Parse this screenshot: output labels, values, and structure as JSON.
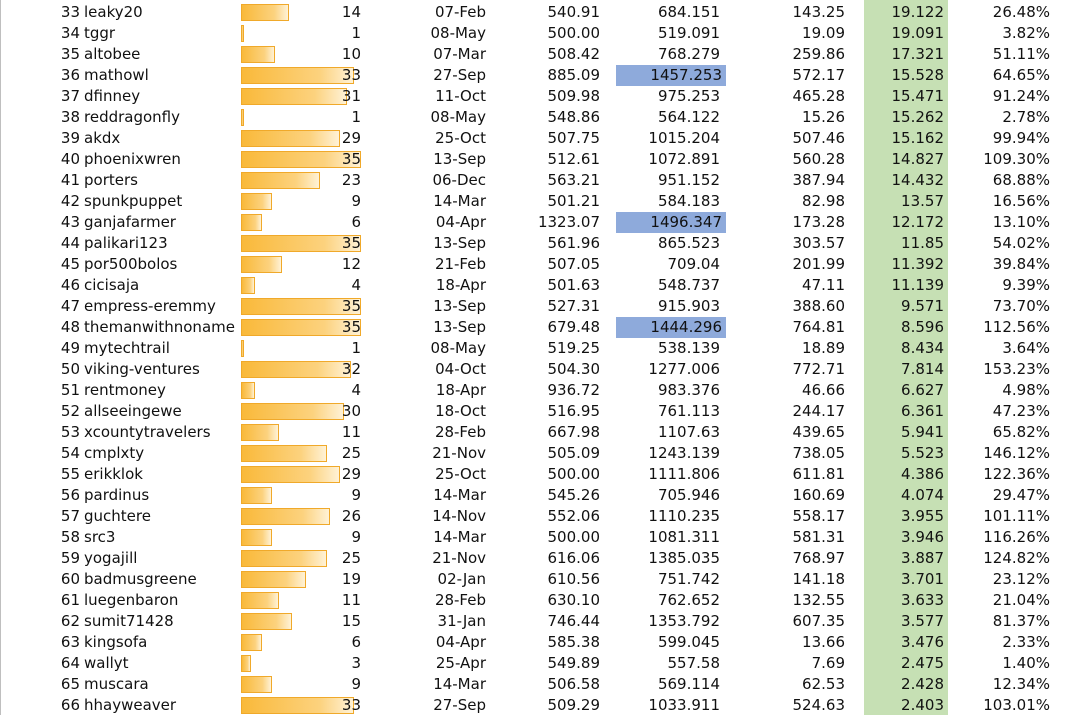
{
  "colors": {
    "highlight_blue": "#8eaadb",
    "green_column": "#c6e0b4",
    "bar_orange": "#f9b93a"
  },
  "bar_max": 35,
  "rows": [
    {
      "rank": "33",
      "name": "leaky20",
      "count": "14",
      "date": "07-Feb",
      "v1": "540.91",
      "v2": "684.151",
      "v3": "143.25",
      "v4": "19.122",
      "v5": "26.48%",
      "hl": false
    },
    {
      "rank": "34",
      "name": "tggr",
      "count": "1",
      "date": "08-May",
      "v1": "500.00",
      "v2": "519.091",
      "v3": "19.09",
      "v4": "19.091",
      "v5": "3.82%",
      "hl": false
    },
    {
      "rank": "35",
      "name": "altobee",
      "count": "10",
      "date": "07-Mar",
      "v1": "508.42",
      "v2": "768.279",
      "v3": "259.86",
      "v4": "17.321",
      "v5": "51.11%",
      "hl": false
    },
    {
      "rank": "36",
      "name": "mathowl",
      "count": "33",
      "date": "27-Sep",
      "v1": "885.09",
      "v2": "1457.253",
      "v3": "572.17",
      "v4": "15.528",
      "v5": "64.65%",
      "hl": true
    },
    {
      "rank": "37",
      "name": "dfinney",
      "count": "31",
      "date": "11-Oct",
      "v1": "509.98",
      "v2": "975.253",
      "v3": "465.28",
      "v4": "15.471",
      "v5": "91.24%",
      "hl": false
    },
    {
      "rank": "38",
      "name": "reddragonfly",
      "count": "1",
      "date": "08-May",
      "v1": "548.86",
      "v2": "564.122",
      "v3": "15.26",
      "v4": "15.262",
      "v5": "2.78%",
      "hl": false
    },
    {
      "rank": "39",
      "name": "akdx",
      "count": "29",
      "date": "25-Oct",
      "v1": "507.75",
      "v2": "1015.204",
      "v3": "507.46",
      "v4": "15.162",
      "v5": "99.94%",
      "hl": false
    },
    {
      "rank": "40",
      "name": "phoenixwren",
      "count": "35",
      "date": "13-Sep",
      "v1": "512.61",
      "v2": "1072.891",
      "v3": "560.28",
      "v4": "14.827",
      "v5": "109.30%",
      "hl": false
    },
    {
      "rank": "41",
      "name": "porters",
      "count": "23",
      "date": "06-Dec",
      "v1": "563.21",
      "v2": "951.152",
      "v3": "387.94",
      "v4": "14.432",
      "v5": "68.88%",
      "hl": false
    },
    {
      "rank": "42",
      "name": "spunkpuppet",
      "count": "9",
      "date": "14-Mar",
      "v1": "501.21",
      "v2": "584.183",
      "v3": "82.98",
      "v4": "13.57",
      "v5": "16.56%",
      "hl": false
    },
    {
      "rank": "43",
      "name": "ganjafarmer",
      "count": "6",
      "date": "04-Apr",
      "v1": "1323.07",
      "v2": "1496.347",
      "v3": "173.28",
      "v4": "12.172",
      "v5": "13.10%",
      "hl": true
    },
    {
      "rank": "44",
      "name": "palikari123",
      "count": "35",
      "date": "13-Sep",
      "v1": "561.96",
      "v2": "865.523",
      "v3": "303.57",
      "v4": "11.85",
      "v5": "54.02%",
      "hl": false
    },
    {
      "rank": "45",
      "name": "por500bolos",
      "count": "12",
      "date": "21-Feb",
      "v1": "507.05",
      "v2": "709.04",
      "v3": "201.99",
      "v4": "11.392",
      "v5": "39.84%",
      "hl": false
    },
    {
      "rank": "46",
      "name": "cicisaja",
      "count": "4",
      "date": "18-Apr",
      "v1": "501.63",
      "v2": "548.737",
      "v3": "47.11",
      "v4": "11.139",
      "v5": "9.39%",
      "hl": false
    },
    {
      "rank": "47",
      "name": "empress-eremmy",
      "count": "35",
      "date": "13-Sep",
      "v1": "527.31",
      "v2": "915.903",
      "v3": "388.60",
      "v4": "9.571",
      "v5": "73.70%",
      "hl": false
    },
    {
      "rank": "48",
      "name": "themanwithnoname",
      "count": "35",
      "date": "13-Sep",
      "v1": "679.48",
      "v2": "1444.296",
      "v3": "764.81",
      "v4": "8.596",
      "v5": "112.56%",
      "hl": true
    },
    {
      "rank": "49",
      "name": "mytechtrail",
      "count": "1",
      "date": "08-May",
      "v1": "519.25",
      "v2": "538.139",
      "v3": "18.89",
      "v4": "8.434",
      "v5": "3.64%",
      "hl": false
    },
    {
      "rank": "50",
      "name": "viking-ventures",
      "count": "32",
      "date": "04-Oct",
      "v1": "504.30",
      "v2": "1277.006",
      "v3": "772.71",
      "v4": "7.814",
      "v5": "153.23%",
      "hl": false
    },
    {
      "rank": "51",
      "name": "rentmoney",
      "count": "4",
      "date": "18-Apr",
      "v1": "936.72",
      "v2": "983.376",
      "v3": "46.66",
      "v4": "6.627",
      "v5": "4.98%",
      "hl": false
    },
    {
      "rank": "52",
      "name": "allseeingewe",
      "count": "30",
      "date": "18-Oct",
      "v1": "516.95",
      "v2": "761.113",
      "v3": "244.17",
      "v4": "6.361",
      "v5": "47.23%",
      "hl": false
    },
    {
      "rank": "53",
      "name": "xcountytravelers",
      "count": "11",
      "date": "28-Feb",
      "v1": "667.98",
      "v2": "1107.63",
      "v3": "439.65",
      "v4": "5.941",
      "v5": "65.82%",
      "hl": false
    },
    {
      "rank": "54",
      "name": "cmplxty",
      "count": "25",
      "date": "21-Nov",
      "v1": "505.09",
      "v2": "1243.139",
      "v3": "738.05",
      "v4": "5.523",
      "v5": "146.12%",
      "hl": false
    },
    {
      "rank": "55",
      "name": "erikklok",
      "count": "29",
      "date": "25-Oct",
      "v1": "500.00",
      "v2": "1111.806",
      "v3": "611.81",
      "v4": "4.386",
      "v5": "122.36%",
      "hl": false
    },
    {
      "rank": "56",
      "name": "pardinus",
      "count": "9",
      "date": "14-Mar",
      "v1": "545.26",
      "v2": "705.946",
      "v3": "160.69",
      "v4": "4.074",
      "v5": "29.47%",
      "hl": false
    },
    {
      "rank": "57",
      "name": "guchtere",
      "count": "26",
      "date": "14-Nov",
      "v1": "552.06",
      "v2": "1110.235",
      "v3": "558.17",
      "v4": "3.955",
      "v5": "101.11%",
      "hl": false
    },
    {
      "rank": "58",
      "name": "src3",
      "count": "9",
      "date": "14-Mar",
      "v1": "500.00",
      "v2": "1081.311",
      "v3": "581.31",
      "v4": "3.946",
      "v5": "116.26%",
      "hl": false
    },
    {
      "rank": "59",
      "name": "yogajill",
      "count": "25",
      "date": "21-Nov",
      "v1": "616.06",
      "v2": "1385.035",
      "v3": "768.97",
      "v4": "3.887",
      "v5": "124.82%",
      "hl": false
    },
    {
      "rank": "60",
      "name": "badmusgreene",
      "count": "19",
      "date": "02-Jan",
      "v1": "610.56",
      "v2": "751.742",
      "v3": "141.18",
      "v4": "3.701",
      "v5": "23.12%",
      "hl": false
    },
    {
      "rank": "61",
      "name": "luegenbaron",
      "count": "11",
      "date": "28-Feb",
      "v1": "630.10",
      "v2": "762.652",
      "v3": "132.55",
      "v4": "3.633",
      "v5": "21.04%",
      "hl": false
    },
    {
      "rank": "62",
      "name": "sumit71428",
      "count": "15",
      "date": "31-Jan",
      "v1": "746.44",
      "v2": "1353.792",
      "v3": "607.35",
      "v4": "3.577",
      "v5": "81.37%",
      "hl": false
    },
    {
      "rank": "63",
      "name": "kingsofa",
      "count": "6",
      "date": "04-Apr",
      "v1": "585.38",
      "v2": "599.045",
      "v3": "13.66",
      "v4": "3.476",
      "v5": "2.33%",
      "hl": false
    },
    {
      "rank": "64",
      "name": "wallyt",
      "count": "3",
      "date": "25-Apr",
      "v1": "549.89",
      "v2": "557.58",
      "v3": "7.69",
      "v4": "2.475",
      "v5": "1.40%",
      "hl": false
    },
    {
      "rank": "65",
      "name": "muscara",
      "count": "9",
      "date": "14-Mar",
      "v1": "506.58",
      "v2": "569.114",
      "v3": "62.53",
      "v4": "2.428",
      "v5": "12.34%",
      "hl": false
    },
    {
      "rank": "66",
      "name": "hhayweaver",
      "count": "33",
      "date": "27-Sep",
      "v1": "509.29",
      "v2": "1033.911",
      "v3": "524.63",
      "v4": "2.403",
      "v5": "103.01%",
      "hl": false
    }
  ]
}
